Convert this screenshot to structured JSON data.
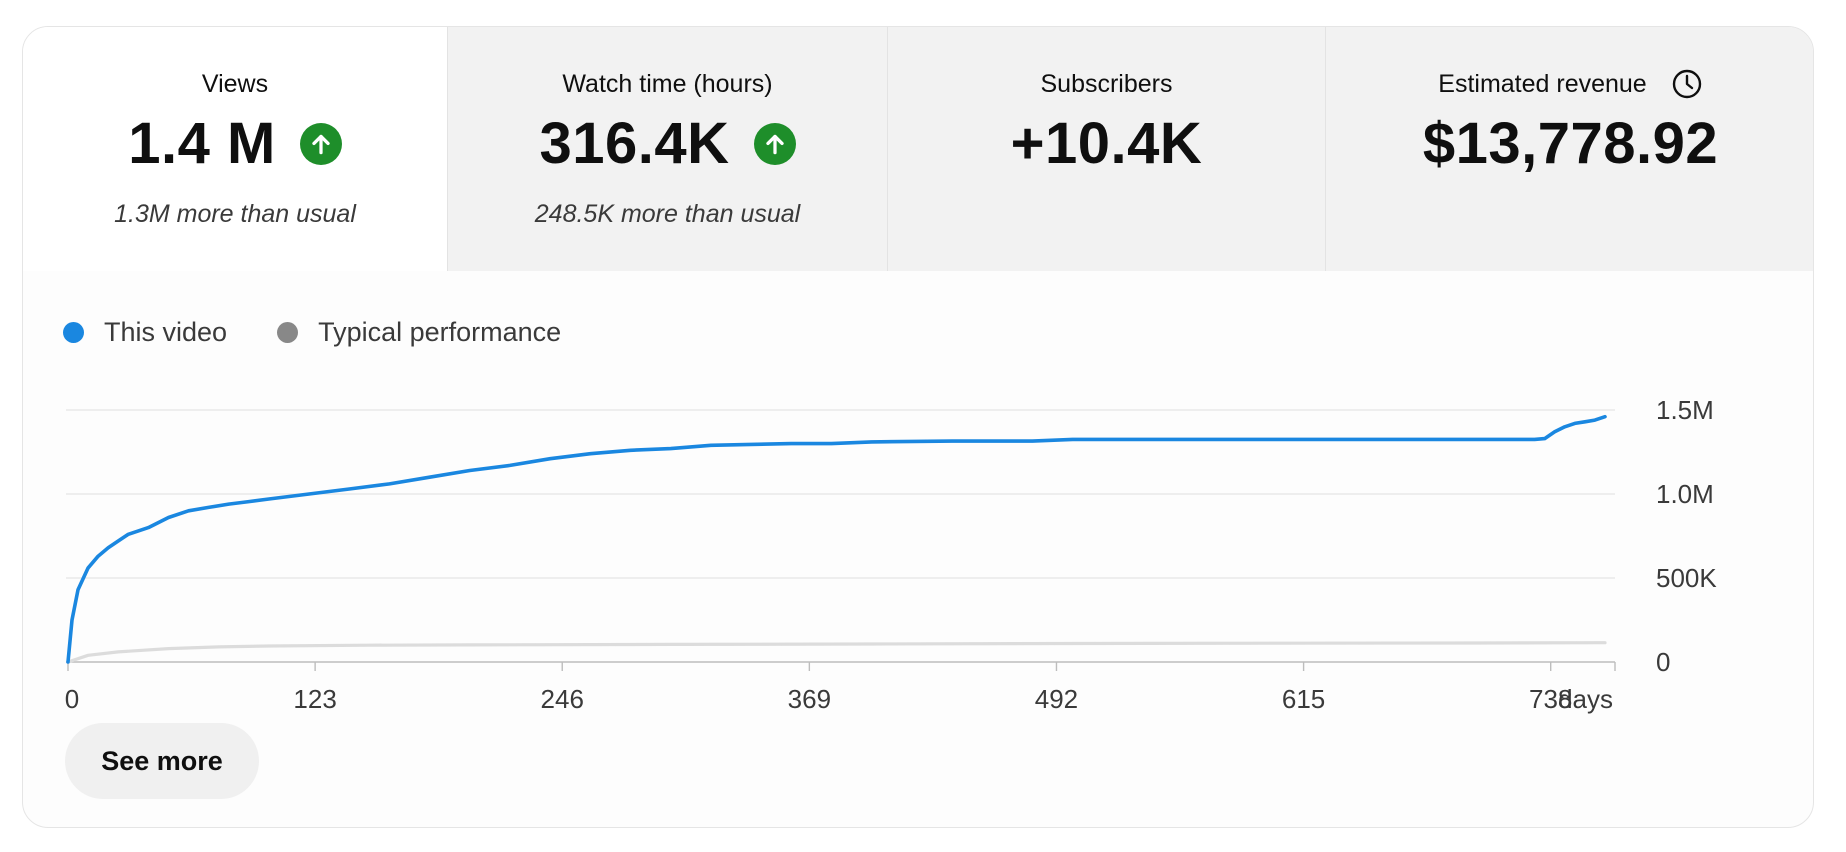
{
  "metrics": [
    {
      "title": "Views",
      "value": "1.4 M",
      "trend": "up",
      "sub": "1.3M more than usual",
      "selected": true
    },
    {
      "title": "Watch time (hours)",
      "value": "316.4K",
      "trend": "up",
      "sub": "248.5K more than usual",
      "selected": false
    },
    {
      "title": "Subscribers",
      "value": "+10.4K",
      "trend": "",
      "sub": "",
      "selected": false
    },
    {
      "title": "Estimated revenue",
      "value": "$13,778.92",
      "trend": "",
      "sub": "",
      "selected": false,
      "icon": "clock-icon"
    }
  ],
  "legend": {
    "this_video": "This video",
    "typical": "Typical performance"
  },
  "see_more_label": "See more",
  "colors": {
    "this_video": "#1a87e0",
    "typical": "#888888",
    "typical_line": "#dcdcdc",
    "trend_up": "#1e8e2a"
  },
  "chart_data": {
    "type": "line",
    "title": "",
    "xlabel": "days",
    "ylabel": "",
    "x_ticks": [
      0,
      123,
      246,
      369,
      492,
      615,
      738
    ],
    "x_tick_labels": [
      "0",
      "123",
      "246",
      "369",
      "492",
      "615",
      "738"
    ],
    "y_ticks": [
      0,
      500000,
      1000000,
      1500000
    ],
    "y_tick_labels": [
      "0",
      "500K",
      "1.0M",
      "1.5M"
    ],
    "xlim": [
      0,
      770
    ],
    "ylim": [
      0,
      1500000
    ],
    "grid": true,
    "legend_position": "top-left",
    "y_axis_side": "right",
    "series": [
      {
        "name": "This video",
        "x": [
          0,
          2,
          5,
          10,
          15,
          20,
          25,
          30,
          40,
          50,
          60,
          70,
          80,
          90,
          100,
          110,
          120,
          140,
          160,
          180,
          200,
          220,
          240,
          260,
          280,
          300,
          320,
          340,
          360,
          380,
          400,
          440,
          480,
          500,
          550,
          600,
          650,
          700,
          730,
          735,
          740,
          745,
          750,
          755,
          760,
          765
        ],
        "y": [
          0,
          250000,
          430000,
          560000,
          630000,
          680000,
          720000,
          760000,
          800000,
          860000,
          900000,
          920000,
          940000,
          955000,
          970000,
          985000,
          1000000,
          1030000,
          1060000,
          1100000,
          1140000,
          1170000,
          1210000,
          1240000,
          1260000,
          1270000,
          1290000,
          1295000,
          1300000,
          1300000,
          1310000,
          1315000,
          1315000,
          1325000,
          1325000,
          1325000,
          1325000,
          1325000,
          1325000,
          1330000,
          1370000,
          1400000,
          1420000,
          1430000,
          1440000,
          1460000
        ]
      },
      {
        "name": "Typical performance",
        "x": [
          0,
          10,
          25,
          50,
          75,
          100,
          150,
          200,
          300,
          400,
          500,
          600,
          700,
          765
        ],
        "y": [
          0,
          40000,
          60000,
          80000,
          90000,
          95000,
          100000,
          102000,
          105000,
          107000,
          110000,
          112000,
          113000,
          115000
        ]
      }
    ]
  }
}
